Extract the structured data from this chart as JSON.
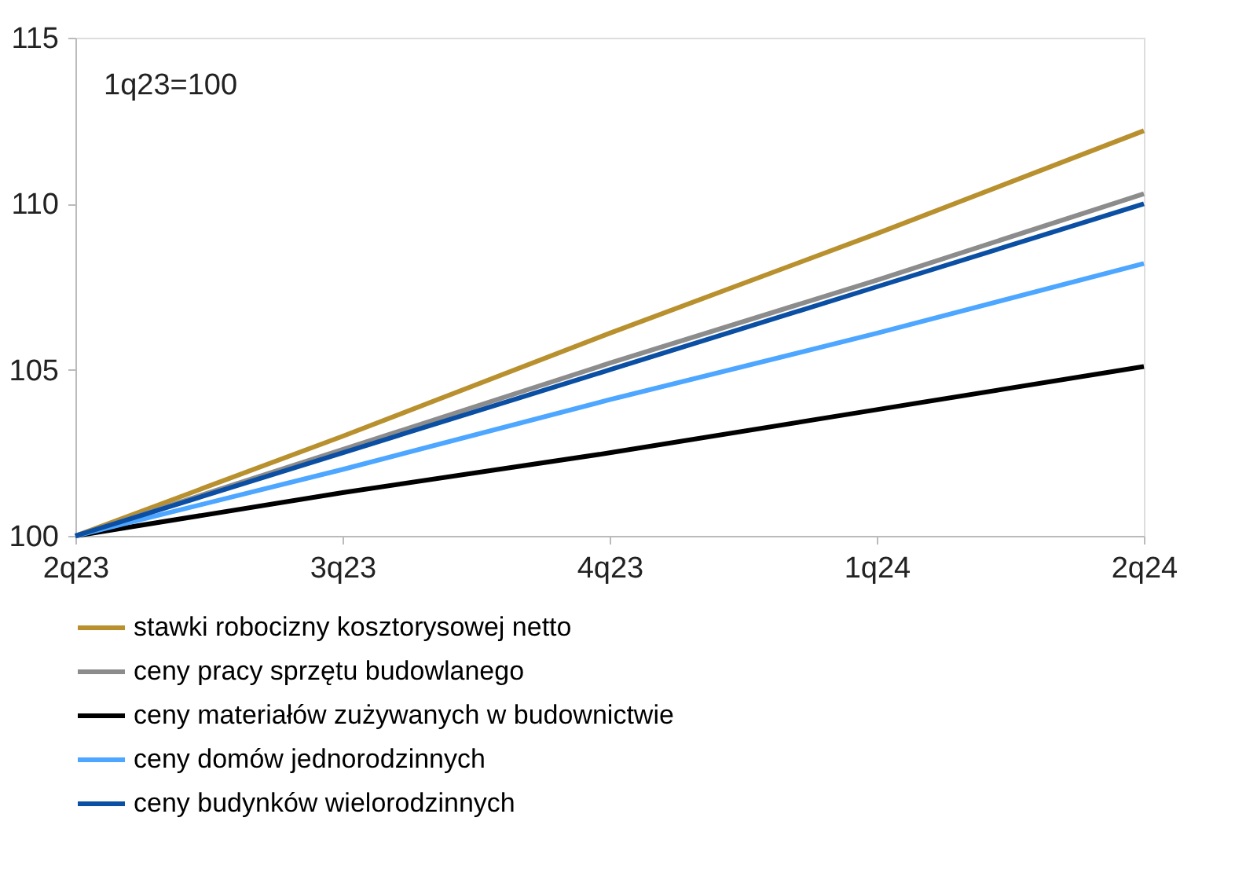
{
  "chart_data": {
    "type": "line",
    "categories": [
      "2q23",
      "3q23",
      "4q23",
      "1q24",
      "2q24"
    ],
    "series": [
      {
        "name": "stawki robocizny kosztorysowej netto",
        "color": "#b8902e",
        "values": [
          100,
          103.0,
          106.1,
          109.1,
          112.2
        ]
      },
      {
        "name": "ceny pracy sprzętu budowlanego",
        "color": "#8c8c8c",
        "values": [
          100,
          102.6,
          105.2,
          107.7,
          110.3
        ]
      },
      {
        "name": "ceny materiałów zużywanych w budownictwie",
        "color": "#000000",
        "values": [
          100,
          101.3,
          102.5,
          103.8,
          105.1
        ]
      },
      {
        "name": "ceny domów jednorodzinnych",
        "color": "#4da6ff",
        "values": [
          100,
          102.0,
          104.1,
          106.1,
          108.2
        ]
      },
      {
        "name": "ceny budynków wielorodzinnych",
        "color": "#0a4fa3",
        "values": [
          100,
          102.5,
          105.0,
          107.5,
          110.0
        ]
      }
    ],
    "ylim": [
      100,
      115
    ],
    "yticks": [
      100,
      105,
      110,
      115
    ],
    "annotations": [
      "1q23=100"
    ],
    "grid": false,
    "legend": "bottom",
    "marker": "none",
    "line_style": "solid"
  }
}
